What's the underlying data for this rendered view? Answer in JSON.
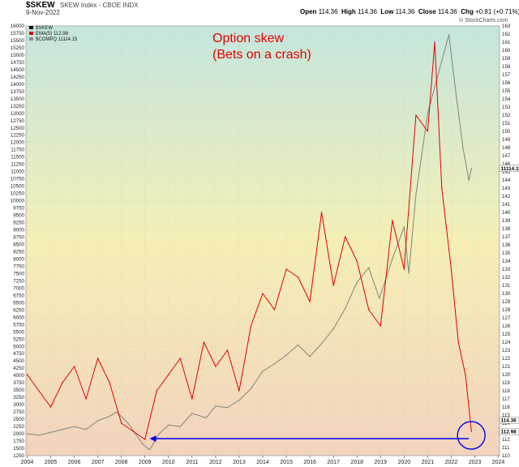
{
  "header": {
    "symbol": "$SKEW",
    "subtitle": "SKEW Index - CBOE INDX",
    "date": "9-Nov-2022",
    "open_label": "Open",
    "open": "114.36",
    "high_label": "High",
    "high": "114.36",
    "low_label": "Low",
    "low": "114.36",
    "close_label": "Close",
    "close": "114.36",
    "chg_label": "Chg",
    "chg": "+0.81 (+0.71%)",
    "brand": "© StockCharts.com"
  },
  "annotation": "Option skew\n(Bets on a crash)",
  "chart_data": {
    "type": "line",
    "x_ticks": [
      "2004",
      "2005",
      "2006",
      "2007",
      "2008",
      "2009",
      "2010",
      "2011",
      "2012",
      "2013",
      "2014",
      "2015",
      "2016",
      "2017",
      "2018",
      "2019",
      "2020",
      "2021",
      "2022",
      "2023",
      "2024"
    ],
    "xlim": [
      2003.95,
      2024.05
    ],
    "left_axis": {
      "range": [
        1250,
        16000
      ],
      "step": 250
    },
    "right_axis": {
      "range": [
        110,
        163
      ],
      "step": 1
    },
    "legend_position": "top-left",
    "legend": [
      {
        "label": "$SKEW",
        "color": "#000000"
      },
      {
        "label": "EMA(5) 112.98",
        "color": "#e00000"
      },
      {
        "label": "$COMPQ 11114.15",
        "color": "#8c8c80"
      }
    ],
    "right_badges": [
      {
        "text": "11114.15",
        "value": 11114.15,
        "axis": "left"
      },
      {
        "text": "114.36",
        "value": 114.36,
        "axis": "right"
      },
      {
        "text": "112.98",
        "value": 112.98,
        "axis": "right"
      }
    ],
    "series": [
      {
        "name": "EMA(5) 112.98",
        "axis": "right",
        "color": "#e00000",
        "x": [
          2004.0,
          2004.5,
          2005.0,
          2005.5,
          2006.0,
          2006.5,
          2007.0,
          2007.5,
          2008.0,
          2008.5,
          2009.0,
          2009.5,
          2010.0,
          2010.5,
          2011.0,
          2011.5,
          2012.0,
          2012.5,
          2013.0,
          2013.5,
          2014.0,
          2014.5,
          2015.0,
          2015.5,
          2016.0,
          2016.5,
          2017.0,
          2017.5,
          2018.0,
          2018.5,
          2019.0,
          2019.5,
          2020.0,
          2020.5,
          2021.0,
          2021.3,
          2021.6,
          2022.0,
          2022.3,
          2022.6,
          2022.86
        ],
        "y": [
          120,
          118,
          116,
          119,
          121,
          117,
          122,
          119,
          114,
          113,
          112,
          118,
          120,
          122,
          117,
          124,
          121,
          123,
          118,
          126,
          130,
          128,
          133,
          132,
          129,
          140,
          131,
          137,
          134,
          128,
          126,
          139,
          133,
          152,
          150,
          161,
          143,
          133,
          124,
          120,
          113
        ]
      },
      {
        "name": "$COMPQ 11114.15",
        "axis": "left",
        "color": "#8c8c80",
        "x": [
          2004.0,
          2004.5,
          2005.0,
          2005.5,
          2006.0,
          2006.5,
          2007.0,
          2007.5,
          2007.8,
          2008.3,
          2008.9,
          2009.2,
          2009.6,
          2010.0,
          2010.5,
          2011.0,
          2011.6,
          2012.0,
          2012.5,
          2013.0,
          2013.5,
          2014.0,
          2014.5,
          2015.0,
          2015.5,
          2016.0,
          2016.5,
          2017.0,
          2017.5,
          2018.0,
          2018.5,
          2018.95,
          2019.5,
          2020.0,
          2020.2,
          2020.5,
          2021.0,
          2021.5,
          2021.9,
          2022.2,
          2022.5,
          2022.75,
          2022.86
        ],
        "y": [
          2000,
          1950,
          2050,
          2150,
          2250,
          2150,
          2450,
          2600,
          2750,
          2350,
          1650,
          1450,
          2000,
          2300,
          2250,
          2700,
          2550,
          2950,
          2900,
          3150,
          3550,
          4150,
          4400,
          4700,
          5050,
          4650,
          5100,
          5600,
          6300,
          7200,
          7700,
          6650,
          8000,
          9100,
          7500,
          10200,
          13000,
          14500,
          15700,
          13700,
          11800,
          10700,
          11114
        ]
      }
    ],
    "horizontal_arrow": {
      "from_x": 2022.75,
      "to_x": 2009.2,
      "y": 112.1,
      "axis": "right",
      "color": "#0000ee"
    },
    "circle_marker": {
      "x": 2022.85,
      "y": 112.5,
      "axis": "right",
      "color": "#0000ee"
    }
  }
}
